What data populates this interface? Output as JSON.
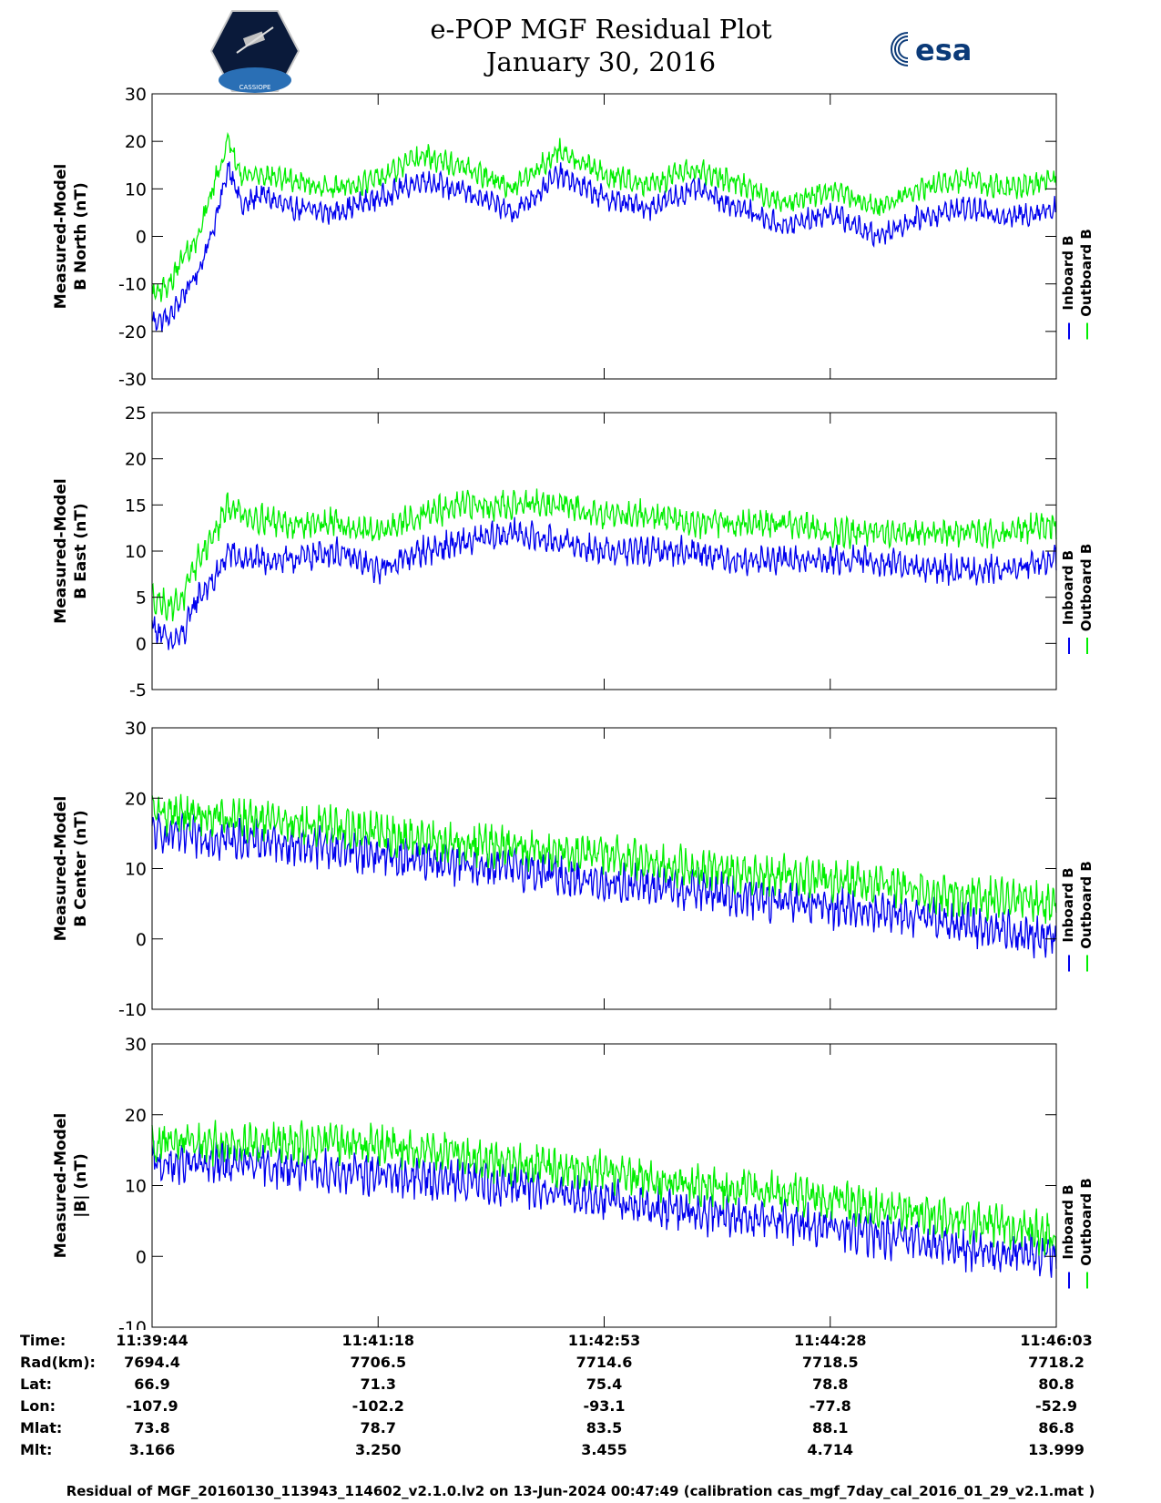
{
  "header": {
    "title_line1": "e-POP MGF Residual Plot",
    "title_line2": "January 30, 2016",
    "left_logo_text": "CASSIOPE",
    "right_logo_text": "esa"
  },
  "colors": {
    "inboard": "#0000ee",
    "outboard": "#00ee00",
    "axis": "#000000"
  },
  "legend": {
    "inboard": "Inboard B",
    "outboard": "Outboard B"
  },
  "chart_data": [
    {
      "type": "line",
      "ylabel_line1": "Measured-Model",
      "ylabel_line2": "B North (nT)",
      "ylim": [
        -30,
        30
      ],
      "yticks": [
        -30,
        -20,
        -10,
        0,
        10,
        20,
        30
      ],
      "legend": [
        "Inboard B",
        "Outboard B"
      ],
      "series": [
        {
          "name": "Inboard B",
          "x": [
            0,
            0.02,
            0.035,
            0.05,
            0.07,
            0.085,
            0.1,
            0.12,
            0.15,
            0.2,
            0.25,
            0.3,
            0.35,
            0.4,
            0.45,
            0.5,
            0.55,
            0.6,
            0.65,
            0.7,
            0.75,
            0.8,
            0.85,
            0.9,
            0.95,
            1.0
          ],
          "values": [
            -18,
            -17,
            -12,
            -8,
            3,
            15,
            6,
            9,
            6,
            5,
            8,
            12,
            9,
            5,
            13,
            8,
            6,
            10,
            6,
            2,
            5,
            0,
            4,
            6,
            4,
            6
          ]
        },
        {
          "name": "Outboard B",
          "x": [
            0,
            0.02,
            0.035,
            0.05,
            0.07,
            0.085,
            0.1,
            0.12,
            0.15,
            0.2,
            0.25,
            0.3,
            0.35,
            0.4,
            0.45,
            0.5,
            0.55,
            0.6,
            0.65,
            0.7,
            0.75,
            0.8,
            0.85,
            0.9,
            0.95,
            1.0
          ],
          "values": [
            -12,
            -10,
            -4,
            -1,
            12,
            20,
            13,
            13,
            12,
            10,
            12,
            17,
            14,
            10,
            18,
            13,
            11,
            14,
            11,
            7,
            10,
            6,
            10,
            12,
            10,
            12
          ]
        }
      ]
    },
    {
      "type": "line",
      "ylabel_line1": "Measured-Model",
      "ylabel_line2": "B East (nT)",
      "ylim": [
        -5,
        25
      ],
      "yticks": [
        -5,
        0,
        5,
        10,
        15,
        20,
        25
      ],
      "legend": [
        "Inboard B",
        "Outboard B"
      ],
      "series": [
        {
          "name": "Inboard B",
          "x": [
            0,
            0.02,
            0.035,
            0.05,
            0.07,
            0.085,
            0.1,
            0.15,
            0.2,
            0.25,
            0.3,
            0.35,
            0.4,
            0.45,
            0.5,
            0.55,
            0.6,
            0.65,
            0.7,
            0.75,
            0.8,
            0.85,
            0.9,
            0.95,
            1.0
          ],
          "values": [
            2,
            0,
            1,
            5,
            7,
            10,
            9,
            9,
            10,
            8,
            10,
            11,
            12,
            11,
            10,
            10,
            10,
            9,
            9,
            9,
            9,
            8,
            8,
            8,
            9
          ]
        },
        {
          "name": "Outboard B",
          "x": [
            0,
            0.02,
            0.035,
            0.05,
            0.07,
            0.085,
            0.1,
            0.15,
            0.2,
            0.25,
            0.3,
            0.35,
            0.4,
            0.45,
            0.5,
            0.55,
            0.6,
            0.65,
            0.7,
            0.75,
            0.8,
            0.85,
            0.9,
            0.95,
            1.0
          ],
          "values": [
            5,
            4,
            5,
            9,
            12,
            15,
            14,
            13,
            13,
            12,
            14,
            15,
            15,
            15,
            14,
            14,
            13,
            13,
            13,
            12,
            12,
            12,
            12,
            12,
            13
          ]
        }
      ]
    },
    {
      "type": "line",
      "ylabel_line1": "Measured-Model",
      "ylabel_line2": "B Center (nT)",
      "ylim": [
        -10,
        30
      ],
      "yticks": [
        -10,
        0,
        10,
        20,
        30
      ],
      "legend": [
        "Inboard B",
        "Outboard B"
      ],
      "series": [
        {
          "name": "Inboard B",
          "x": [
            0,
            0.1,
            0.2,
            0.3,
            0.4,
            0.5,
            0.6,
            0.7,
            0.8,
            0.9,
            1.0
          ],
          "values": [
            15,
            14,
            13,
            11,
            10,
            8,
            7,
            5,
            4,
            2,
            0
          ]
        },
        {
          "name": "Outboard B",
          "x": [
            0,
            0.1,
            0.2,
            0.3,
            0.4,
            0.5,
            0.6,
            0.7,
            0.8,
            0.9,
            1.0
          ],
          "values": [
            18,
            17,
            16,
            14,
            13,
            12,
            10,
            9,
            8,
            6,
            5
          ]
        }
      ]
    },
    {
      "type": "line",
      "ylabel_line1": "Measured-Model",
      "ylabel_line2": "|B| (nT)",
      "ylim": [
        -10,
        30
      ],
      "yticks": [
        -10,
        0,
        10,
        20,
        30
      ],
      "legend": [
        "Inboard B",
        "Outboard B"
      ],
      "series": [
        {
          "name": "Inboard B",
          "x": [
            0,
            0.1,
            0.2,
            0.3,
            0.4,
            0.5,
            0.6,
            0.7,
            0.8,
            0.9,
            1.0
          ],
          "values": [
            13,
            13,
            12,
            11,
            10,
            8,
            6,
            5,
            3,
            1,
            0
          ]
        },
        {
          "name": "Outboard B",
          "x": [
            0,
            0.1,
            0.2,
            0.3,
            0.4,
            0.5,
            0.6,
            0.7,
            0.8,
            0.9,
            1.0
          ],
          "values": [
            16,
            16,
            16,
            15,
            13,
            12,
            10,
            9,
            7,
            5,
            3
          ]
        }
      ]
    }
  ],
  "table": {
    "row_labels": [
      "Time:",
      "Rad(km):",
      "Lat:",
      "Lon:",
      "Mlat:",
      "Mlt:"
    ],
    "columns": [
      [
        "11:39:44",
        "7694.4",
        "66.9",
        "-107.9",
        "73.8",
        "3.166"
      ],
      [
        "11:41:18",
        "7706.5",
        "71.3",
        "-102.2",
        "78.7",
        "3.250"
      ],
      [
        "11:42:53",
        "7714.6",
        "75.4",
        "-93.1",
        "83.5",
        "3.455"
      ],
      [
        "11:44:28",
        "7718.5",
        "78.8",
        "-77.8",
        "88.1",
        "4.714"
      ],
      [
        "11:46:03",
        "7718.2",
        "80.8",
        "-52.9",
        "86.8",
        "13.999"
      ]
    ]
  },
  "footer": "Residual of MGF_20160130_113943_114602_v2.1.0.lv2 on 13-Jun-2024 00:47:49 (calibration cas_mgf_7day_cal_2016_01_29_v2.1.mat )"
}
